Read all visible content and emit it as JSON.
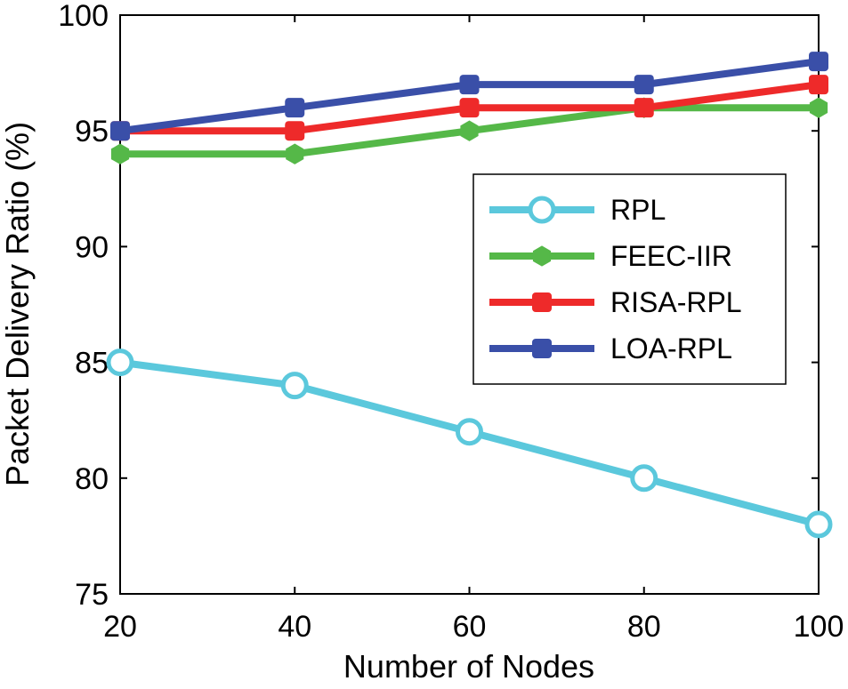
{
  "chart_data": {
    "type": "line",
    "title": "",
    "xlabel": "Number of Nodes",
    "ylabel": "Packet Delivery Ratio (%)",
    "x": [
      20,
      40,
      60,
      80,
      100
    ],
    "xlim": [
      20,
      100
    ],
    "ylim": [
      75,
      100
    ],
    "xticks": [
      "20",
      "40",
      "60",
      "80",
      "100"
    ],
    "yticks": [
      "75",
      "80",
      "85",
      "90",
      "95",
      "100"
    ],
    "grid": false,
    "legend_position": "center-right",
    "series": [
      {
        "name": "RPL",
        "values": [
          85,
          84,
          82,
          80,
          78
        ],
        "color": "#5bc8dc",
        "marker": "circle-open"
      },
      {
        "name": "FEEC-IIR",
        "values": [
          94,
          94,
          95,
          96,
          96
        ],
        "color": "#55b848",
        "marker": "hexagon"
      },
      {
        "name": "RISA-RPL",
        "values": [
          95,
          95,
          96,
          96,
          97
        ],
        "color": "#ee2a2a",
        "marker": "square"
      },
      {
        "name": "LOA-RPL",
        "values": [
          95,
          96,
          97,
          97,
          98
        ],
        "color": "#3a4fa8",
        "marker": "square"
      }
    ]
  }
}
